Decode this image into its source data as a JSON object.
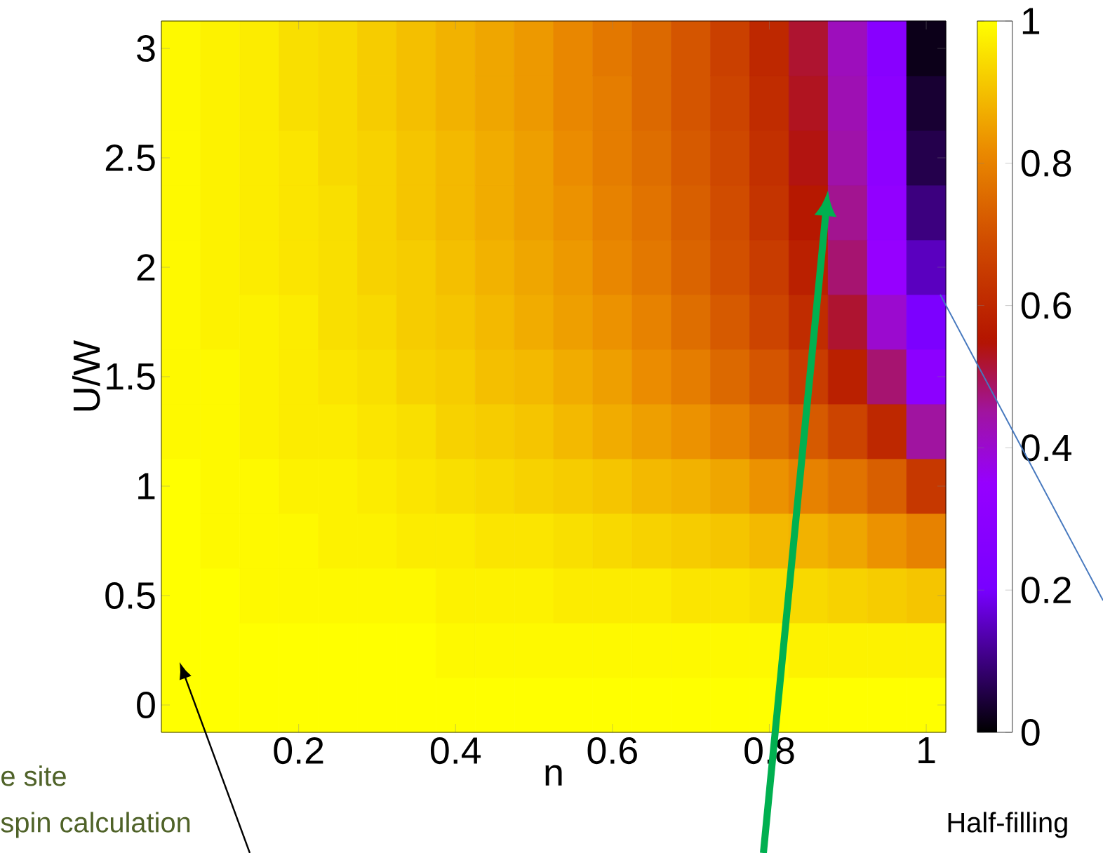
{
  "chart_data": {
    "type": "heatmap",
    "xlabel": "n",
    "ylabel": "U/W",
    "categories": [
      null,
      null,
      null,
      "0.2",
      null,
      null,
      null,
      "0.4",
      null,
      null,
      null,
      "0.6",
      null,
      null,
      null,
      "0.8",
      null,
      null,
      null,
      "1"
    ],
    "y_categories": [
      "3",
      null,
      "2.5",
      null,
      "2",
      null,
      "1.5",
      null,
      "1",
      null,
      "0.5",
      null,
      "0"
    ],
    "clim": [
      0,
      1
    ],
    "cticks": [
      0,
      0.2,
      0.4,
      0.6,
      0.8,
      1
    ],
    "cells": [
      [
        0.99,
        0.98,
        0.97,
        0.95,
        0.94,
        0.92,
        0.9,
        0.88,
        0.86,
        0.84,
        0.81,
        0.78,
        0.75,
        0.71,
        0.66,
        0.6,
        0.52,
        0.42,
        0.28,
        0.02
      ],
      [
        0.99,
        0.98,
        0.97,
        0.95,
        0.94,
        0.92,
        0.9,
        0.88,
        0.86,
        0.84,
        0.81,
        0.79,
        0.75,
        0.71,
        0.67,
        0.61,
        0.53,
        0.43,
        0.3,
        0.04
      ],
      [
        0.99,
        0.98,
        0.97,
        0.96,
        0.94,
        0.93,
        0.91,
        0.89,
        0.87,
        0.85,
        0.82,
        0.79,
        0.76,
        0.72,
        0.68,
        0.62,
        0.54,
        0.44,
        0.31,
        0.06
      ],
      [
        0.99,
        0.98,
        0.97,
        0.96,
        0.95,
        0.93,
        0.91,
        0.89,
        0.87,
        0.85,
        0.83,
        0.8,
        0.77,
        0.73,
        0.69,
        0.63,
        0.56,
        0.46,
        0.33,
        0.1
      ],
      [
        0.99,
        0.98,
        0.97,
        0.96,
        0.95,
        0.93,
        0.92,
        0.9,
        0.88,
        0.86,
        0.84,
        0.81,
        0.78,
        0.74,
        0.7,
        0.65,
        0.58,
        0.48,
        0.35,
        0.15
      ],
      [
        0.99,
        0.98,
        0.98,
        0.97,
        0.95,
        0.94,
        0.92,
        0.91,
        0.89,
        0.87,
        0.85,
        0.83,
        0.8,
        0.76,
        0.72,
        0.67,
        0.61,
        0.52,
        0.4,
        0.22
      ],
      [
        0.99,
        0.99,
        0.98,
        0.97,
        0.96,
        0.95,
        0.93,
        0.92,
        0.9,
        0.89,
        0.87,
        0.85,
        0.82,
        0.79,
        0.75,
        0.71,
        0.65,
        0.58,
        0.48,
        0.3
      ],
      [
        0.99,
        0.99,
        0.98,
        0.97,
        0.97,
        0.96,
        0.95,
        0.93,
        0.92,
        0.91,
        0.89,
        0.87,
        0.85,
        0.83,
        0.8,
        0.76,
        0.72,
        0.67,
        0.6,
        0.45
      ],
      [
        1.0,
        0.99,
        0.99,
        0.98,
        0.98,
        0.97,
        0.96,
        0.95,
        0.94,
        0.93,
        0.92,
        0.91,
        0.89,
        0.88,
        0.86,
        0.83,
        0.8,
        0.77,
        0.73,
        0.64
      ],
      [
        1.0,
        0.99,
        0.99,
        0.99,
        0.98,
        0.98,
        0.97,
        0.97,
        0.96,
        0.96,
        0.95,
        0.94,
        0.93,
        0.92,
        0.91,
        0.89,
        0.88,
        0.86,
        0.83,
        0.8
      ],
      [
        1.0,
        1.0,
        0.99,
        0.99,
        0.99,
        0.99,
        0.99,
        0.98,
        0.98,
        0.98,
        0.97,
        0.97,
        0.97,
        0.96,
        0.96,
        0.95,
        0.94,
        0.93,
        0.92,
        0.91
      ],
      [
        1.0,
        1.0,
        1.0,
        1.0,
        1.0,
        1.0,
        1.0,
        0.99,
        0.99,
        0.99,
        0.99,
        0.99,
        0.99,
        0.99,
        0.99,
        0.99,
        0.98,
        0.98,
        0.98,
        0.98
      ],
      [
        1.0,
        1.0,
        1.0,
        1.0,
        1.0,
        1.0,
        1.0,
        1.0,
        1.0,
        1.0,
        1.0,
        1.0,
        1.0,
        1.0,
        1.0,
        1.0,
        1.0,
        1.0,
        1.0,
        1.0
      ]
    ],
    "annotations": [
      "Half-filling",
      "e site",
      "spin calculation"
    ]
  }
}
